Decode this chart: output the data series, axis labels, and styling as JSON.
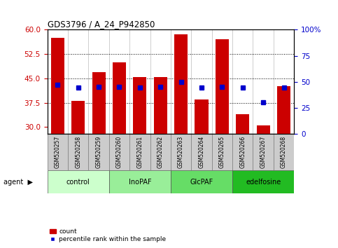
{
  "title": "GDS3796 / A_24_P942850",
  "samples": [
    "GSM520257",
    "GSM520258",
    "GSM520259",
    "GSM520260",
    "GSM520261",
    "GSM520262",
    "GSM520263",
    "GSM520264",
    "GSM520265",
    "GSM520266",
    "GSM520267",
    "GSM520268"
  ],
  "counts": [
    57.5,
    38.0,
    47.0,
    50.0,
    45.5,
    45.5,
    58.5,
    38.5,
    57.0,
    34.0,
    30.5,
    42.5
  ],
  "percentiles": [
    47,
    44,
    45,
    45,
    44,
    45,
    50,
    44,
    45,
    44,
    30,
    44
  ],
  "ylim_left": [
    28,
    60
  ],
  "ylim_right": [
    0,
    100
  ],
  "yticks_left": [
    30,
    37.5,
    45,
    52.5,
    60
  ],
  "yticks_right": [
    0,
    25,
    50,
    75,
    100
  ],
  "ytick_labels_right": [
    "0",
    "25",
    "50",
    "75",
    "100%"
  ],
  "bar_color": "#cc0000",
  "dot_color": "#0000cc",
  "bar_bottom": 28,
  "agents": [
    {
      "label": "control",
      "start": 0,
      "end": 3
    },
    {
      "label": "InoPAF",
      "start": 3,
      "end": 6
    },
    {
      "label": "GlcPAF",
      "start": 6,
      "end": 9
    },
    {
      "label": "edelfosine",
      "start": 9,
      "end": 12
    }
  ],
  "agent_colors": [
    "#ccffcc",
    "#99ee99",
    "#66dd66",
    "#22bb22"
  ],
  "xlabel_color": "#cc0000",
  "ylabel_right_color": "#0000cc",
  "sample_bg_color": "#cccccc",
  "figsize": [
    4.83,
    3.54
  ],
  "dpi": 100
}
